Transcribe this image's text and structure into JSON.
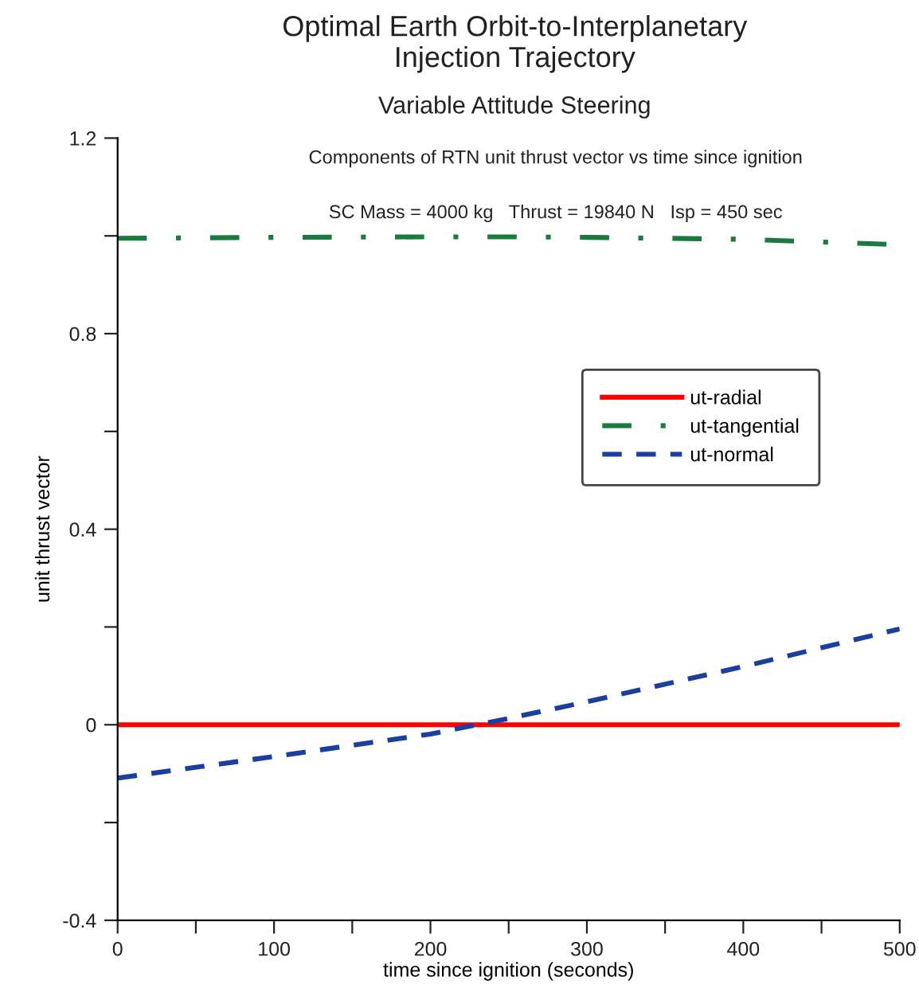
{
  "chart_data": {
    "type": "line",
    "title": "Optimal Earth Orbit-to-Interplanetary\nInjection Trajectory",
    "subtitle": "Variable Attitude Steering",
    "xlabel": "time since ignition (seconds)",
    "ylabel": "unit thrust vector",
    "annotations": [
      "Components of RTN unit thrust vector vs time since ignition",
      "SC Mass = 4000 kg   Thrust = 19840 N   Isp = 450 sec"
    ],
    "x": [
      0,
      100,
      200,
      250,
      300,
      400,
      500
    ],
    "series": [
      {
        "name": "ut-radial",
        "color": "#ff0000",
        "line_style": "solid",
        "values": [
          0,
          0,
          0,
          0,
          0,
          0,
          0
        ]
      },
      {
        "name": "ut-tangential",
        "color": "#1a7a40",
        "line_style": "dashdot",
        "values": [
          0.995,
          0.997,
          0.998,
          0.998,
          0.997,
          0.993,
          0.982
        ]
      },
      {
        "name": "ut-normal",
        "color": "#1a3fa0",
        "line_style": "dashed",
        "values": [
          -0.109,
          -0.065,
          -0.019,
          0.013,
          0.047,
          0.119,
          0.196
        ]
      }
    ],
    "xlim": [
      0,
      500
    ],
    "xticks": [
      0,
      {
        "value": 50,
        "label": null
      },
      100,
      {
        "value": 150,
        "label": null
      },
      200,
      {
        "value": 250,
        "label": null
      },
      300,
      {
        "value": 350,
        "label": null
      },
      400,
      {
        "value": 450,
        "label": null
      },
      500
    ],
    "ylim": [
      -0.4,
      1.2
    ],
    "yticks": [
      -0.4,
      {
        "value": -0.2,
        "label": null
      },
      0,
      {
        "value": 0.2,
        "label": null
      },
      0.4,
      {
        "value": 0.6,
        "label": null
      },
      0.8,
      {
        "value": 1.0,
        "label": null
      },
      1.2
    ],
    "grid": false,
    "legend": "right",
    "marker": "none"
  }
}
